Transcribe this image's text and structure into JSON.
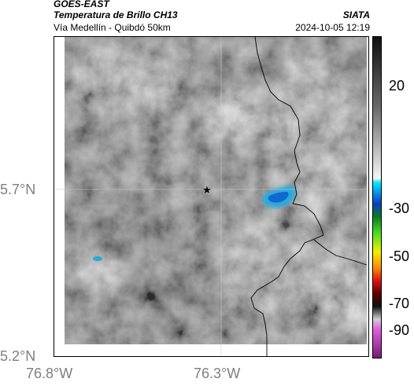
{
  "header": {
    "line1": "GOES-EAST",
    "line2": "Temperatura de Brillo CH13",
    "line3": "Vía Medellín - Quibdó 50km",
    "brand": "SIATA",
    "datetime": "2024-10-05 12:19"
  },
  "axes": {
    "lat_labels": [
      "5.7°N",
      "5.2°N"
    ],
    "lon_labels": [
      "76.8°W",
      "76.3°W"
    ]
  },
  "colorbar": {
    "tick_labels": [
      "20",
      "-30",
      "-50",
      "-70",
      "-90"
    ]
  },
  "map": {
    "marker_icon": "star-icon",
    "colors": {
      "cold_cloud": "#2aa8e0",
      "cold_cloud_core": "#0c5ec8",
      "border_line": "#000000"
    }
  }
}
